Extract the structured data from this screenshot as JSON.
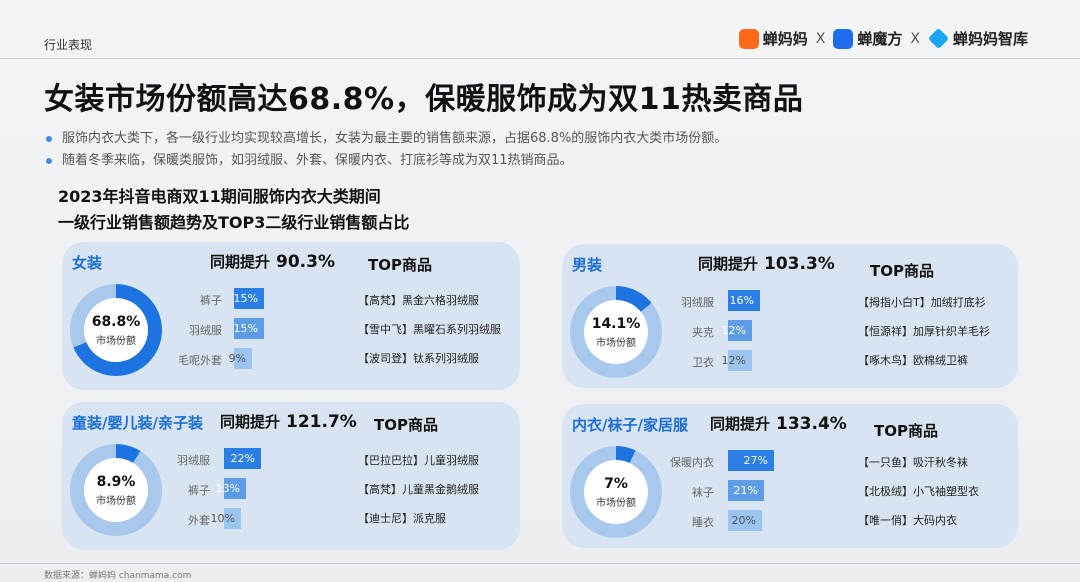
{
  "header": {
    "section_label": "行业表现",
    "brands": [
      {
        "name": "蝉妈妈",
        "icon": "chanmama-logo-icon",
        "color": "#ff6a1a"
      },
      {
        "name": "蝉魔方",
        "icon": "chanmofang-logo-icon",
        "color": "#1f6bf0"
      },
      {
        "name": "蝉妈妈智库",
        "icon": "chanmama-zhiku-logo-icon",
        "color": "#1aa7f0"
      }
    ],
    "separator": "X"
  },
  "title": "女装市场份额高达68.8%，保暖服饰成为双11热卖商品",
  "bullets": [
    "服饰内衣大类下，各一级行业均实现较高增长，女装为最主要的销售额来源，占据68.8%的服饰内衣大类市场份额。",
    "随着冬季来临，保暖类服饰，如羽绒服、外套、保暖内衣、打底衫等成为双11热销商品。"
  ],
  "chart_heading": {
    "line1": "2023年抖音电商双11期间服饰内衣大类期间",
    "line2": "一级行业销售额趋势及TOP3二级行业销售额占比"
  },
  "top_label": "TOP商品",
  "growth_label": "同期提升",
  "share_label": "市场份额",
  "panels": [
    {
      "name": "女装",
      "growth": "90.3%",
      "share": "68.8%",
      "bars": [
        {
          "label": "裤子",
          "value": "15%"
        },
        {
          "label": "羽绒服",
          "value": "15%"
        },
        {
          "label": "毛呢外套",
          "value": "9%"
        }
      ],
      "top": [
        "【高梵】黑金六格羽绒服",
        "【雪中飞】黑曜石系列羽绒服",
        "【波司登】钛系列羽绒服"
      ]
    },
    {
      "name": "男装",
      "growth": "103.3%",
      "share": "14.1%",
      "bars": [
        {
          "label": "羽绒服",
          "value": "16%"
        },
        {
          "label": "夹克",
          "value": "12%"
        },
        {
          "label": "卫衣",
          "value": "12%"
        }
      ],
      "top": [
        "【拇指小白T】加绒打底衫",
        "【恒源祥】加厚针织羊毛衫",
        "【啄木鸟】欧棉绒卫裤"
      ]
    },
    {
      "name": "童装/婴儿装/亲子装",
      "growth": "121.7%",
      "share": "8.9%",
      "bars": [
        {
          "label": "羽绒服",
          "value": "22%"
        },
        {
          "label": "裤子",
          "value": "13%"
        },
        {
          "label": "外套",
          "value": "10%"
        }
      ],
      "top": [
        "【巴拉巴拉】儿童羽绒服",
        "【高梵】儿童黑金鹅绒服",
        "【迪士尼】派克服"
      ]
    },
    {
      "name": "内衣/袜子/家居服",
      "growth": "133.4%",
      "share": "7%",
      "bars": [
        {
          "label": "保暖内衣",
          "value": "27%"
        },
        {
          "label": "袜子",
          "value": "21%"
        },
        {
          "label": "睡衣",
          "value": "20%"
        }
      ],
      "top": [
        "【一只鱼】吸汗秋冬袜",
        "【北极绒】小飞袖塑型衣",
        "【唯一俏】大码内衣"
      ]
    }
  ],
  "chart_data": {
    "type": "bar",
    "series": [
      {
        "name": "女装",
        "share": 68.8,
        "growth": 90.3,
        "categories": [
          "裤子",
          "羽绒服",
          "毛呢外套"
        ],
        "values": [
          15,
          15,
          9
        ]
      },
      {
        "name": "男装",
        "share": 14.1,
        "growth": 103.3,
        "categories": [
          "羽绒服",
          "夹克",
          "卫衣"
        ],
        "values": [
          16,
          12,
          12
        ]
      },
      {
        "name": "童装/婴儿装/亲子装",
        "share": 8.9,
        "growth": 121.7,
        "categories": [
          "羽绒服",
          "裤子",
          "外套"
        ],
        "values": [
          22,
          13,
          10
        ]
      },
      {
        "name": "内衣/袜子/家居服",
        "share": 7,
        "growth": 133.4,
        "categories": [
          "保暖内衣",
          "袜子",
          "睡衣"
        ],
        "values": [
          27,
          21,
          20
        ]
      }
    ],
    "colors": {
      "accent": "#2a7ee6",
      "mid": "#5d9de8",
      "light": "#9cc4f0",
      "donut_track": "#a9c8ee"
    }
  },
  "footer": "数据来源：蝉妈妈 chanmama.com"
}
